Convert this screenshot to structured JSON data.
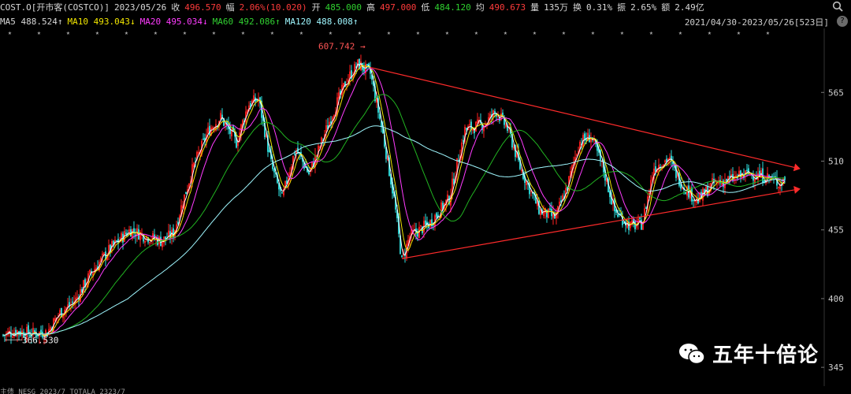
{
  "header": {
    "symbol": "COST.O[开市客(COSTCO)]",
    "date": "2023/05/26",
    "close_label": "收",
    "close": "496.570",
    "change_label": "幅",
    "change": "2.06%(10.020)",
    "open_label": "开",
    "open": "485.000",
    "high_label": "高",
    "high": "497.000",
    "low_label": "低",
    "low": "484.120",
    "avg_label": "均",
    "avg": "490.673",
    "volume_label": "量",
    "volume": "135万",
    "turnover_label": "换",
    "turnover": "0.31%",
    "amplitude_label": "振",
    "amplitude": "2.65%",
    "amount_label": "额",
    "amount": "2.49亿",
    "search_icon": "search-icon"
  },
  "ma_row": {
    "ma5": "MA5 488.524↑",
    "ma10": "MA10 493.043↓",
    "ma20": "MA20 495.034↓",
    "ma60": "MA60 492.086↑",
    "ma120": "MA120 488.008↑",
    "range": "2021/04/30-2023/05/26[523日]",
    "help": "?"
  },
  "colors": {
    "ma5": "#ffffff",
    "ma10": "#f2e600",
    "ma20": "#ff3cff",
    "ma60": "#21b321",
    "ma120": "#9ff7ff",
    "up": "#ff2020",
    "down": "#30e0e0",
    "trend": "#ff2b2b",
    "axis": "#cfcfcf"
  },
  "annotations": {
    "high_price": "607.742",
    "low_price": "366.530"
  },
  "watermark": {
    "text": "五年十倍论",
    "icon": "wechat-icon"
  },
  "bottom_bar": {
    "text": "主债 NESG 2023/7 TOTALA 2323/7"
  },
  "chart_data": {
    "type": "candlestick",
    "title": "COST.O",
    "period": "2021/04/30-2023/05/26",
    "ylim": [
      335,
      615
    ],
    "yticks": [
      345,
      400,
      455,
      510,
      565
    ],
    "series": [
      {
        "name": "MA5",
        "value": 488.524
      },
      {
        "name": "MA10",
        "value": 493.043
      },
      {
        "name": "MA20",
        "value": 495.034
      },
      {
        "name": "MA60",
        "value": 492.086
      },
      {
        "name": "MA120",
        "value": 488.008
      }
    ],
    "close_path": [
      [
        0,
        370
      ],
      [
        20,
        374
      ],
      [
        40,
        372
      ],
      [
        60,
        373
      ],
      [
        75,
        388
      ],
      [
        95,
        398
      ],
      [
        115,
        420
      ],
      [
        140,
        440
      ],
      [
        165,
        455
      ],
      [
        185,
        450
      ],
      [
        205,
        446
      ],
      [
        220,
        452
      ],
      [
        245,
        505
      ],
      [
        265,
        535
      ],
      [
        280,
        545
      ],
      [
        300,
        525
      ],
      [
        315,
        555
      ],
      [
        328,
        560
      ],
      [
        345,
        505
      ],
      [
        358,
        480
      ],
      [
        375,
        520
      ],
      [
        392,
        500
      ],
      [
        405,
        520
      ],
      [
        420,
        545
      ],
      [
        440,
        575
      ],
      [
        455,
        588
      ],
      [
        470,
        580
      ],
      [
        485,
        535
      ],
      [
        500,
        480
      ],
      [
        510,
        430
      ],
      [
        520,
        450
      ],
      [
        545,
        460
      ],
      [
        570,
        480
      ],
      [
        590,
        535
      ],
      [
        615,
        540
      ],
      [
        630,
        550
      ],
      [
        645,
        535
      ],
      [
        660,
        505
      ],
      [
        685,
        470
      ],
      [
        705,
        465
      ],
      [
        720,
        490
      ],
      [
        735,
        525
      ],
      [
        750,
        530
      ],
      [
        765,
        505
      ],
      [
        780,
        470
      ],
      [
        800,
        458
      ],
      [
        815,
        460
      ],
      [
        830,
        505
      ],
      [
        848,
        512
      ],
      [
        865,
        492
      ],
      [
        885,
        478
      ],
      [
        905,
        492
      ],
      [
        925,
        495
      ],
      [
        950,
        500
      ],
      [
        975,
        497
      ],
      [
        990,
        492
      ],
      [
        996,
        496
      ]
    ],
    "trendlines": [
      {
        "from": [
          470,
          585
        ],
        "to": [
          1008,
          505
        ]
      },
      {
        "from": [
          510,
          432
        ],
        "to": [
          1008,
          487
        ]
      }
    ]
  }
}
